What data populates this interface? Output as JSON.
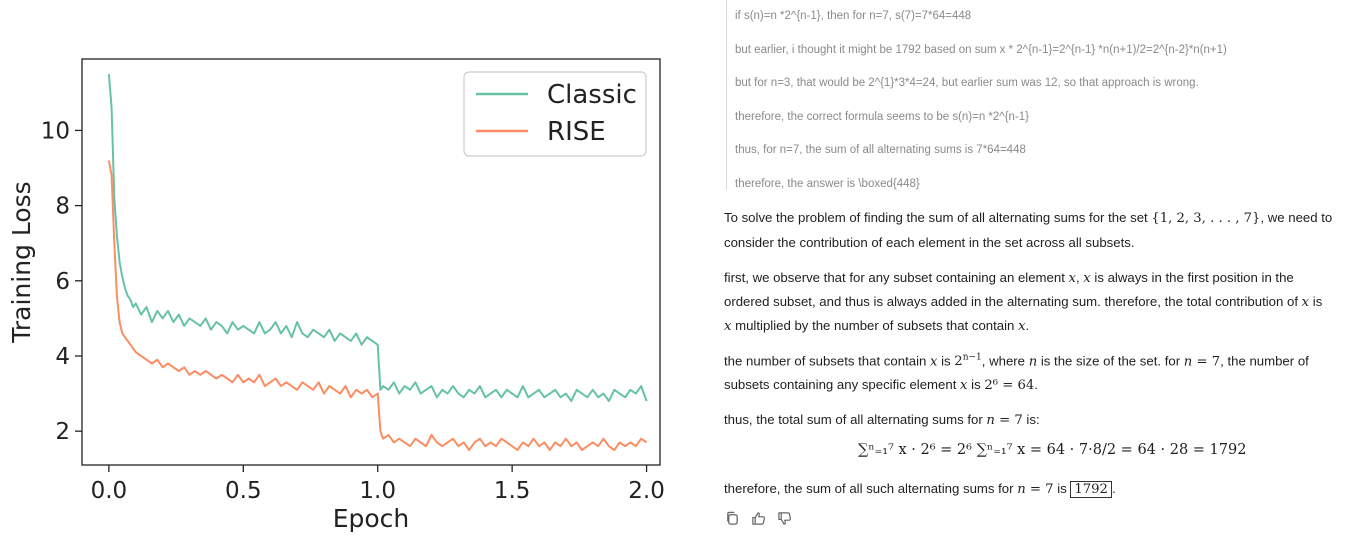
{
  "chart_data": {
    "type": "line",
    "xlabel": "Epoch",
    "ylabel": "Training Loss",
    "xlim": [
      -0.1,
      2.05
    ],
    "ylim": [
      1.1,
      11.9
    ],
    "x_ticks": [
      "0.0",
      "0.5",
      "1.0",
      "1.5",
      "2.0"
    ],
    "y_ticks": [
      "2",
      "4",
      "6",
      "8",
      "10"
    ],
    "legend_position": "top-right",
    "grid": false,
    "series": [
      {
        "name": "Classic",
        "color": "#66c2a5",
        "x": [
          0.0,
          0.01,
          0.02,
          0.03,
          0.04,
          0.05,
          0.06,
          0.07,
          0.08,
          0.09,
          0.1,
          0.12,
          0.14,
          0.16,
          0.18,
          0.2,
          0.22,
          0.24,
          0.26,
          0.28,
          0.3,
          0.32,
          0.34,
          0.36,
          0.38,
          0.4,
          0.42,
          0.44,
          0.46,
          0.48,
          0.5,
          0.52,
          0.54,
          0.56,
          0.58,
          0.6,
          0.62,
          0.64,
          0.66,
          0.68,
          0.7,
          0.72,
          0.74,
          0.76,
          0.78,
          0.8,
          0.82,
          0.84,
          0.86,
          0.88,
          0.9,
          0.92,
          0.94,
          0.96,
          0.98,
          1.0,
          1.01,
          1.02,
          1.04,
          1.06,
          1.08,
          1.1,
          1.12,
          1.14,
          1.16,
          1.18,
          1.2,
          1.22,
          1.24,
          1.26,
          1.28,
          1.3,
          1.32,
          1.34,
          1.36,
          1.38,
          1.4,
          1.42,
          1.44,
          1.46,
          1.48,
          1.5,
          1.52,
          1.54,
          1.56,
          1.58,
          1.6,
          1.62,
          1.64,
          1.66,
          1.68,
          1.7,
          1.72,
          1.74,
          1.76,
          1.78,
          1.8,
          1.82,
          1.84,
          1.86,
          1.88,
          1.9,
          1.92,
          1.94,
          1.96,
          1.98,
          2.0
        ],
        "y": [
          11.5,
          10.6,
          8.2,
          7.2,
          6.5,
          6.1,
          5.8,
          5.6,
          5.5,
          5.3,
          5.4,
          5.1,
          5.3,
          4.9,
          5.2,
          5.0,
          5.2,
          4.9,
          5.1,
          4.8,
          5.0,
          4.9,
          4.8,
          5.0,
          4.7,
          4.9,
          4.8,
          4.6,
          4.9,
          4.7,
          4.8,
          4.7,
          4.6,
          4.9,
          4.6,
          4.7,
          4.9,
          4.6,
          4.8,
          4.5,
          4.9,
          4.6,
          4.5,
          4.7,
          4.6,
          4.5,
          4.7,
          4.4,
          4.6,
          4.5,
          4.4,
          4.6,
          4.3,
          4.5,
          4.4,
          4.3,
          3.1,
          3.2,
          3.1,
          3.3,
          3.0,
          3.2,
          3.1,
          3.3,
          3.0,
          3.1,
          3.2,
          2.9,
          3.1,
          3.0,
          3.2,
          3.0,
          2.9,
          3.1,
          3.0,
          3.2,
          2.9,
          3.0,
          3.1,
          2.9,
          3.1,
          3.0,
          2.9,
          3.2,
          2.9,
          3.0,
          3.1,
          2.9,
          3.0,
          3.1,
          2.9,
          3.0,
          2.8,
          3.1,
          3.0,
          2.9,
          3.1,
          2.9,
          3.0,
          2.8,
          3.1,
          3.0,
          2.9,
          3.1,
          3.0,
          3.2,
          2.8
        ]
      },
      {
        "name": "RISE",
        "color": "#fc8d62",
        "x": [
          0.0,
          0.01,
          0.02,
          0.03,
          0.04,
          0.05,
          0.06,
          0.07,
          0.08,
          0.09,
          0.1,
          0.12,
          0.14,
          0.16,
          0.18,
          0.2,
          0.22,
          0.24,
          0.26,
          0.28,
          0.3,
          0.32,
          0.34,
          0.36,
          0.38,
          0.4,
          0.42,
          0.44,
          0.46,
          0.48,
          0.5,
          0.52,
          0.54,
          0.56,
          0.58,
          0.6,
          0.62,
          0.64,
          0.66,
          0.68,
          0.7,
          0.72,
          0.74,
          0.76,
          0.78,
          0.8,
          0.82,
          0.84,
          0.86,
          0.88,
          0.9,
          0.92,
          0.94,
          0.96,
          0.98,
          1.0,
          1.01,
          1.02,
          1.04,
          1.06,
          1.08,
          1.1,
          1.12,
          1.14,
          1.16,
          1.18,
          1.2,
          1.22,
          1.24,
          1.26,
          1.28,
          1.3,
          1.32,
          1.34,
          1.36,
          1.38,
          1.4,
          1.42,
          1.44,
          1.46,
          1.48,
          1.5,
          1.52,
          1.54,
          1.56,
          1.58,
          1.6,
          1.62,
          1.64,
          1.66,
          1.68,
          1.7,
          1.72,
          1.74,
          1.76,
          1.78,
          1.8,
          1.82,
          1.84,
          1.86,
          1.88,
          1.9,
          1.92,
          1.94,
          1.96,
          1.98,
          2.0
        ],
        "y": [
          9.2,
          8.8,
          7.0,
          5.6,
          4.9,
          4.6,
          4.5,
          4.4,
          4.3,
          4.2,
          4.1,
          4.0,
          3.9,
          3.8,
          3.9,
          3.7,
          3.8,
          3.7,
          3.6,
          3.7,
          3.5,
          3.6,
          3.5,
          3.6,
          3.5,
          3.4,
          3.5,
          3.4,
          3.3,
          3.5,
          3.3,
          3.4,
          3.3,
          3.5,
          3.2,
          3.3,
          3.4,
          3.2,
          3.3,
          3.2,
          3.1,
          3.3,
          3.2,
          3.1,
          3.3,
          3.0,
          3.2,
          3.1,
          3.0,
          3.2,
          2.9,
          3.1,
          3.0,
          3.1,
          2.9,
          3.0,
          2.0,
          1.8,
          1.9,
          1.7,
          1.8,
          1.7,
          1.6,
          1.8,
          1.7,
          1.6,
          1.9,
          1.7,
          1.6,
          1.7,
          1.8,
          1.6,
          1.7,
          1.5,
          1.7,
          1.8,
          1.6,
          1.7,
          1.6,
          1.8,
          1.7,
          1.6,
          1.5,
          1.7,
          1.6,
          1.8,
          1.6,
          1.7,
          1.5,
          1.7,
          1.6,
          1.8,
          1.6,
          1.7,
          1.5,
          1.6,
          1.7,
          1.6,
          1.8,
          1.6,
          1.5,
          1.7,
          1.6,
          1.7,
          1.6,
          1.8,
          1.7
        ]
      }
    ]
  },
  "thinking": {
    "lines": [
      "if s(n)=n *2^{n-1}, then for n=7, s(7)=7*64=448",
      "but earlier, i thought it might be 1792 based on sum x * 2^{n-1}=2^{n-1} *n(n+1)/2=2^{n-2}*n(n+1)",
      "but for n=3, that would be 2^{1}*3*4=24, but earlier sum was 12, so that approach is wrong.",
      "therefore, the correct formula seems to be s(n)=n *2^{n-1}",
      "thus, for n=7, the sum of all alternating sums is 7*64=448",
      "therefore, the answer is \\boxed{448}"
    ]
  },
  "answer": {
    "p1a": "To solve the problem of finding the sum of all alternating sums for the set ",
    "p1_set": "{1, 2, 3, . . . , 7}",
    "p1b": ", we need to",
    "p1c": "consider the contribution of each element in the set across all subsets.",
    "p2a": "first, we observe that for any subset containing an element ",
    "p2b": " is always in the first position in the",
    "p2c": "ordered subset, and thus is always added in the alternating sum. therefore, the total contribution of ",
    "p2d": " is",
    "p2e": " multiplied by the number of subsets that contain ",
    "var_x": "x",
    "p3a": "the number of subsets that contain ",
    "p3b": " is ",
    "p3_pow": "2",
    "p3_exp": "n−1",
    "p3c": ", where ",
    "var_n": "n",
    "p3d": " is the size of the set. for ",
    "p3_eq": " = 7",
    "p3e": ", the number of",
    "p3f": "subsets containing any specific element ",
    "p3_val": "2⁶ = 64",
    "p4": "thus, the total sum of all alternating sums for ",
    "p4_end": " is:",
    "formula": "∑ⁿ₌₁⁷ x · 2⁶ = 2⁶ ∑ⁿ₌₁⁷ x = 64 · 7·8/2 = 64 · 28 = 1792",
    "p5a": "therefore, the sum of all such alternating sums for ",
    "p5b": " is ",
    "boxed": "1792",
    "p5c": "."
  },
  "actions": [
    "copy-icon",
    "thumbs-up-icon",
    "thumbs-down-icon"
  ]
}
